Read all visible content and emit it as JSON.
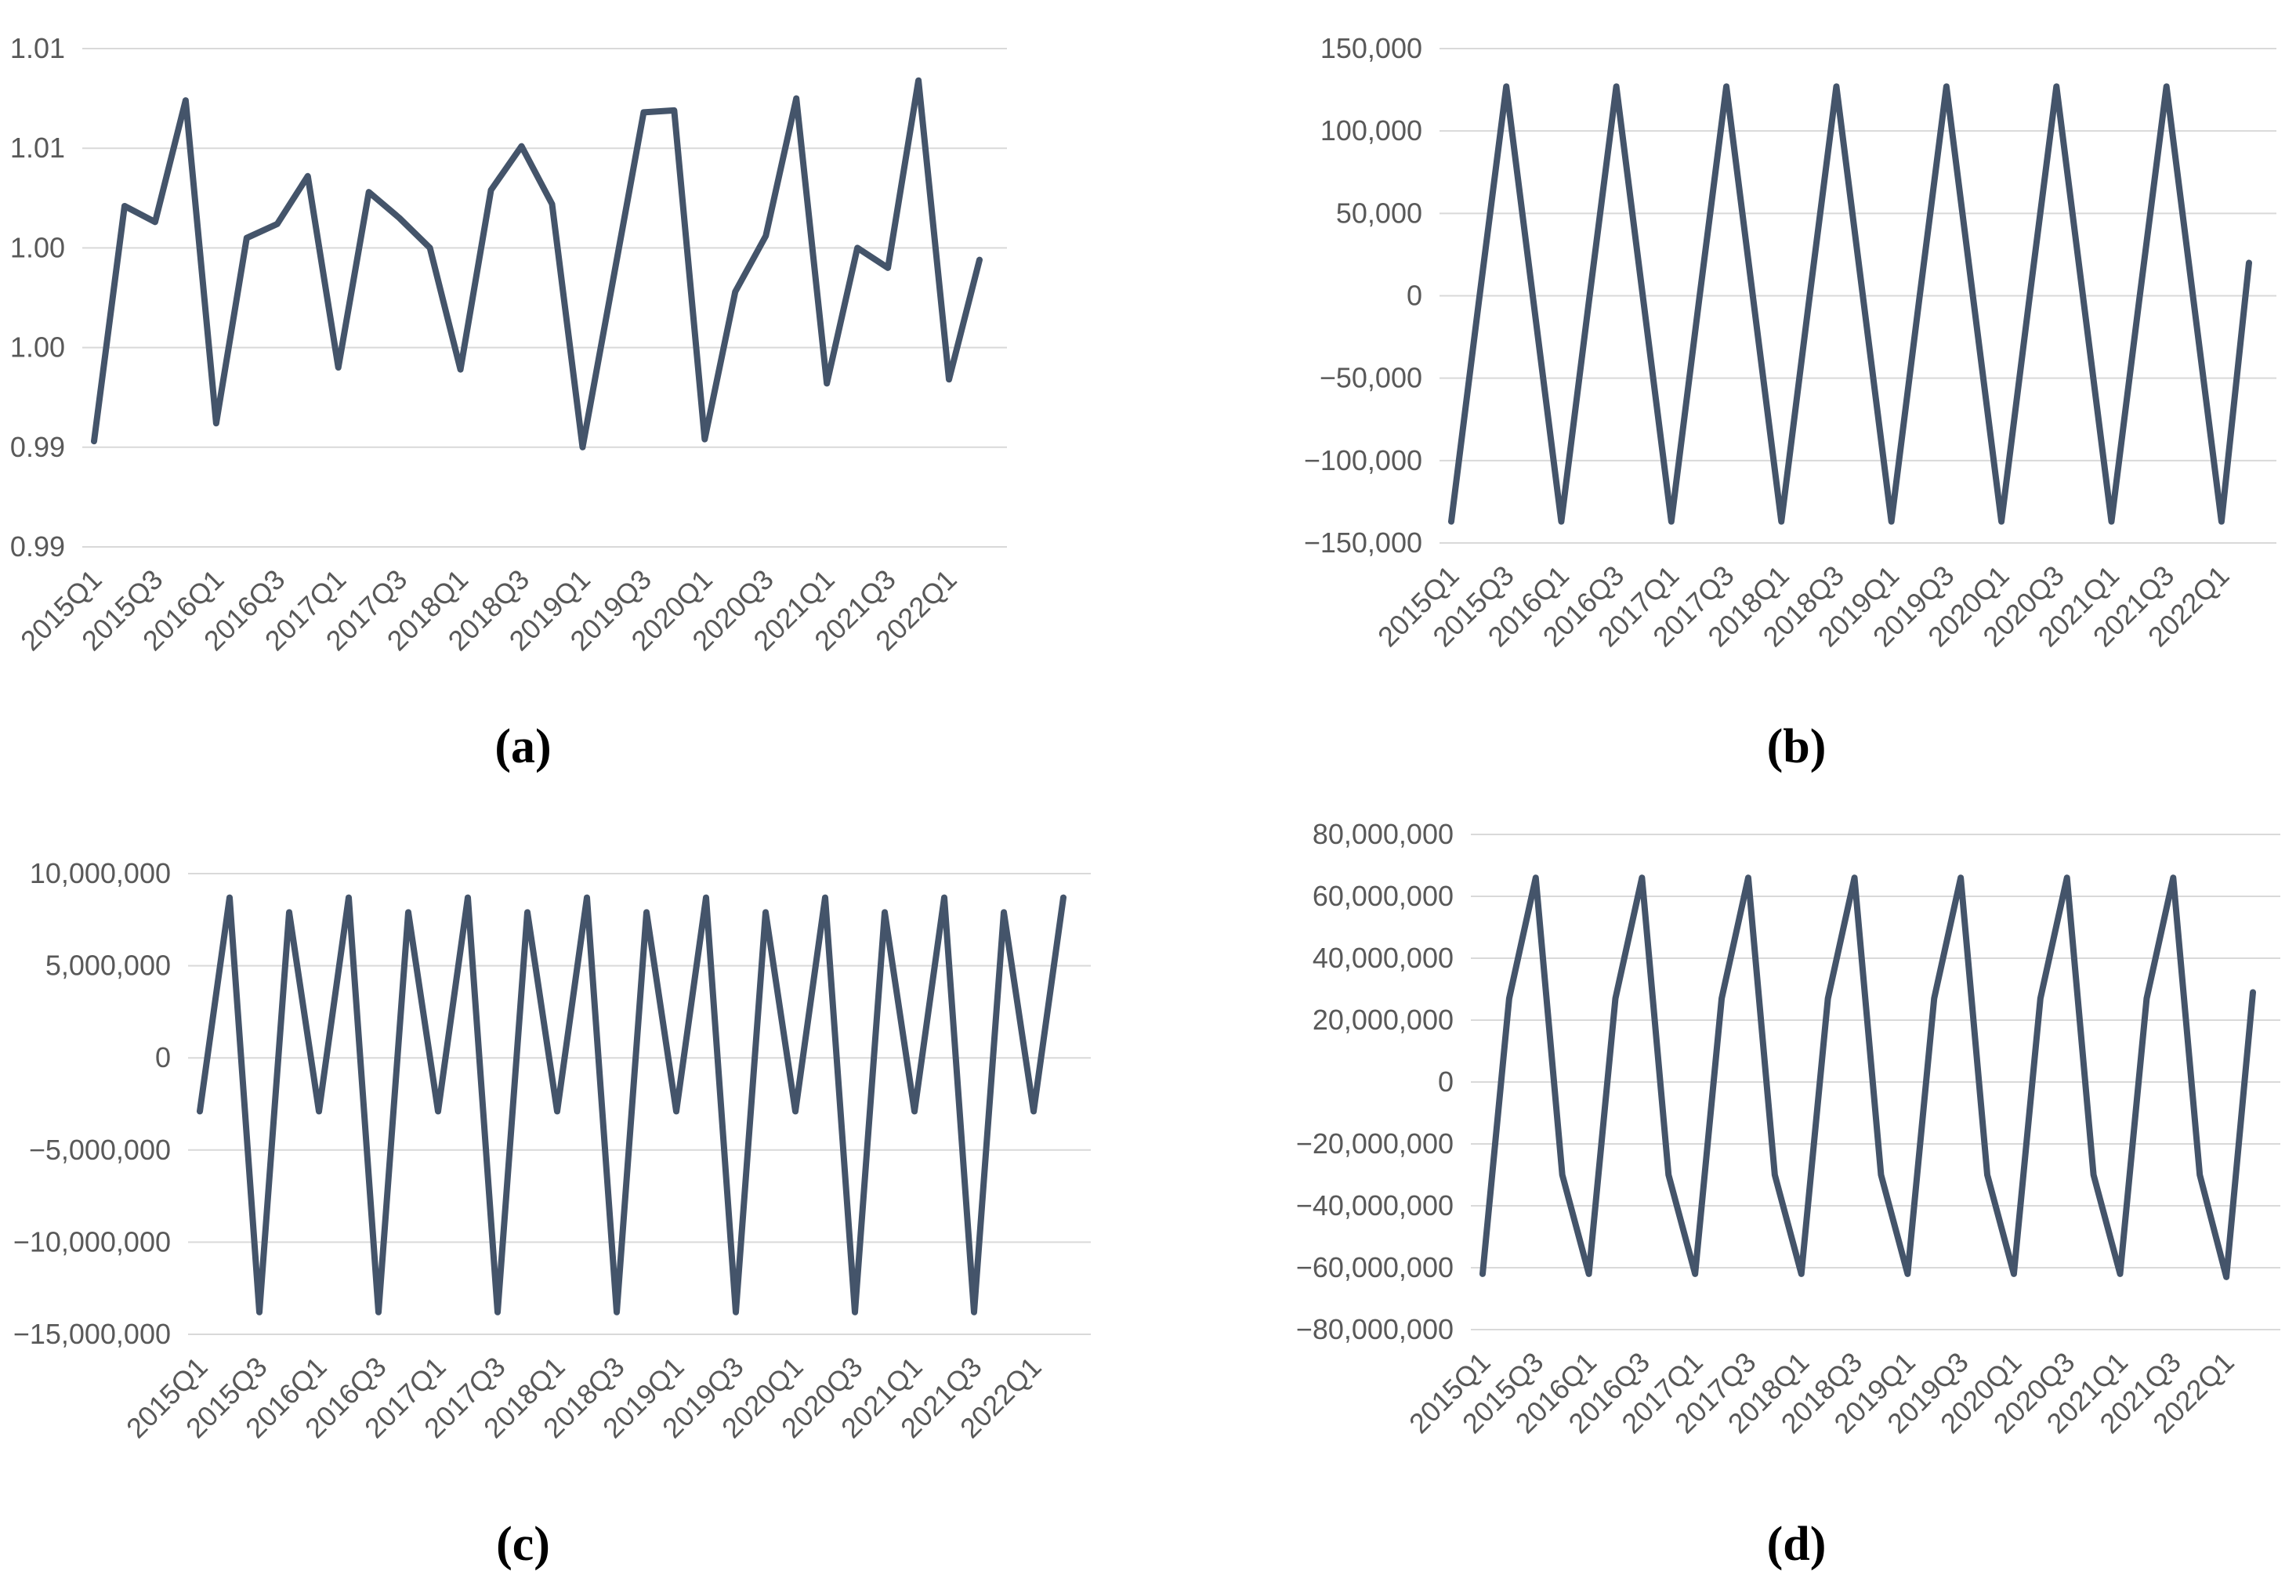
{
  "figure": {
    "background": "#FFFFFF",
    "line_color": "#44546A",
    "grid_color": "#D9D9D9",
    "tick_label_color": "#595959",
    "caption_color": "#000000"
  },
  "chart_data": [
    {
      "id": "a",
      "type": "line",
      "caption": "(a)",
      "title": "",
      "xlabel": "",
      "ylabel": "",
      "legend": "none",
      "grid": true,
      "ylim": [
        0.985,
        1.01
      ],
      "y_ticks": [
        {
          "value": 1.01,
          "label": "1.01"
        },
        {
          "value": 1.005,
          "label": "1.01"
        },
        {
          "value": 1.0,
          "label": "1.00"
        },
        {
          "value": 0.995,
          "label": "1.00"
        },
        {
          "value": 0.99,
          "label": "0.99"
        },
        {
          "value": 0.985,
          "label": "0.99"
        }
      ],
      "x_tick_labels": [
        "2015Q1",
        "2015Q3",
        "2016Q1",
        "2016Q3",
        "2017Q1",
        "2017Q3",
        "2018Q1",
        "2018Q3",
        "2019Q1",
        "2019Q3",
        "2020Q1",
        "2020Q3",
        "2021Q1",
        "2021Q3",
        "2022Q1"
      ],
      "categories": [
        "2015Q1",
        "2015Q2",
        "2015Q3",
        "2015Q4",
        "2016Q1",
        "2016Q2",
        "2016Q3",
        "2016Q4",
        "2017Q1",
        "2017Q2",
        "2017Q3",
        "2017Q4",
        "2018Q1",
        "2018Q2",
        "2018Q3",
        "2018Q4",
        "2019Q1",
        "2019Q2",
        "2019Q3",
        "2019Q4",
        "2020Q1",
        "2020Q2",
        "2020Q3",
        "2020Q4",
        "2021Q1",
        "2021Q2",
        "2021Q3",
        "2021Q4",
        "2022Q1",
        "2022Q2"
      ],
      "values": [
        0.9903,
        1.0021,
        1.0013,
        1.0074,
        0.9912,
        1.0005,
        1.0012,
        1.0036,
        0.994,
        1.0028,
        1.0015,
        1.0,
        0.9939,
        1.0029,
        1.0051,
        1.0022,
        0.99,
        0.9984,
        1.0068,
        1.0069,
        0.9904,
        0.9978,
        1.0006,
        1.0075,
        0.9932,
        1.0,
        0.999,
        1.0084,
        0.9934,
        0.9994
      ]
    },
    {
      "id": "b",
      "type": "line",
      "caption": "(b)",
      "title": "",
      "xlabel": "",
      "ylabel": "",
      "legend": "none",
      "grid": true,
      "ylim": [
        -150000,
        150000
      ],
      "y_ticks": [
        {
          "value": 150000,
          "label": "150,000"
        },
        {
          "value": 100000,
          "label": "100,000"
        },
        {
          "value": 50000,
          "label": "50,000"
        },
        {
          "value": 0,
          "label": "0"
        },
        {
          "value": -50000,
          "label": "−50,000"
        },
        {
          "value": -100000,
          "label": "−100,000"
        },
        {
          "value": -150000,
          "label": "−150,000"
        }
      ],
      "x_tick_labels": [
        "2015Q1",
        "2015Q3",
        "2016Q1",
        "2016Q3",
        "2017Q1",
        "2017Q3",
        "2018Q1",
        "2018Q3",
        "2019Q1",
        "2019Q3",
        "2020Q1",
        "2020Q3",
        "2021Q1",
        "2021Q3",
        "2022Q1"
      ],
      "categories": [
        "2015Q1",
        "2015Q2",
        "2015Q3",
        "2015Q4",
        "2016Q1",
        "2016Q2",
        "2016Q3",
        "2016Q4",
        "2017Q1",
        "2017Q2",
        "2017Q3",
        "2017Q4",
        "2018Q1",
        "2018Q2",
        "2018Q3",
        "2018Q4",
        "2019Q1",
        "2019Q2",
        "2019Q3",
        "2019Q4",
        "2020Q1",
        "2020Q2",
        "2020Q3",
        "2020Q4",
        "2021Q1",
        "2021Q2",
        "2021Q3",
        "2021Q4",
        "2022Q1",
        "2022Q2"
      ],
      "values": [
        -137000,
        -4000,
        127000,
        -5000,
        -137000,
        -4000,
        127000,
        -5000,
        -137000,
        -4000,
        127000,
        -5000,
        -137000,
        -4000,
        127000,
        -5000,
        -137000,
        -4000,
        127000,
        -5000,
        -137000,
        -4000,
        127000,
        -5000,
        -137000,
        -4000,
        127000,
        -5000,
        -137000,
        20000
      ]
    },
    {
      "id": "c",
      "type": "line",
      "caption": "(c)",
      "title": "",
      "xlabel": "",
      "ylabel": "",
      "legend": "none",
      "grid": true,
      "ylim": [
        -15000000,
        10000000
      ],
      "y_ticks": [
        {
          "value": 10000000,
          "label": "10,000,000"
        },
        {
          "value": 5000000,
          "label": "5,000,000"
        },
        {
          "value": 0,
          "label": "0"
        },
        {
          "value": -5000000,
          "label": "−5,000,000"
        },
        {
          "value": -10000000,
          "label": "−10,000,000"
        },
        {
          "value": -15000000,
          "label": "−15,000,000"
        }
      ],
      "x_tick_labels": [
        "2015Q1",
        "2015Q3",
        "2016Q1",
        "2016Q3",
        "2017Q1",
        "2017Q3",
        "2018Q1",
        "2018Q3",
        "2019Q1",
        "2019Q3",
        "2020Q1",
        "2020Q3",
        "2021Q1",
        "2021Q3",
        "2022Q1"
      ],
      "categories": [
        "2015Q1",
        "2015Q2",
        "2015Q3",
        "2015Q4",
        "2016Q1",
        "2016Q2",
        "2016Q3",
        "2016Q4",
        "2017Q1",
        "2017Q2",
        "2017Q3",
        "2017Q4",
        "2018Q1",
        "2018Q2",
        "2018Q3",
        "2018Q4",
        "2019Q1",
        "2019Q2",
        "2019Q3",
        "2019Q4",
        "2020Q1",
        "2020Q2",
        "2020Q3",
        "2020Q4",
        "2021Q1",
        "2021Q2",
        "2021Q3",
        "2021Q4",
        "2022Q1",
        "2022Q2"
      ],
      "values": [
        -2900000,
        8700000,
        -13800000,
        7900000,
        -2900000,
        8700000,
        -13800000,
        7900000,
        -2900000,
        8700000,
        -13800000,
        7900000,
        -2900000,
        8700000,
        -13800000,
        7900000,
        -2900000,
        8700000,
        -13800000,
        7900000,
        -2900000,
        8700000,
        -13800000,
        7900000,
        -2900000,
        8700000,
        -13800000,
        7900000,
        -2900000,
        8700000
      ]
    },
    {
      "id": "d",
      "type": "line",
      "caption": "(d)",
      "title": "",
      "xlabel": "",
      "ylabel": "",
      "legend": "none",
      "grid": true,
      "ylim": [
        -80000000,
        80000000
      ],
      "y_ticks": [
        {
          "value": 80000000,
          "label": "80,000,000"
        },
        {
          "value": 60000000,
          "label": "60,000,000"
        },
        {
          "value": 40000000,
          "label": "40,000,000"
        },
        {
          "value": 20000000,
          "label": "20,000,000"
        },
        {
          "value": 0,
          "label": "0"
        },
        {
          "value": -20000000,
          "label": "−20,000,000"
        },
        {
          "value": -40000000,
          "label": "−40,000,000"
        },
        {
          "value": -60000000,
          "label": "−60,000,000"
        },
        {
          "value": -80000000,
          "label": "−80,000,000"
        }
      ],
      "x_tick_labels": [
        "2015Q1",
        "2015Q3",
        "2016Q1",
        "2016Q3",
        "2017Q1",
        "2017Q3",
        "2018Q1",
        "2018Q3",
        "2019Q1",
        "2019Q3",
        "2020Q1",
        "2020Q3",
        "2021Q1",
        "2021Q3",
        "2022Q1"
      ],
      "categories": [
        "2015Q1",
        "2015Q2",
        "2015Q3",
        "2015Q4",
        "2016Q1",
        "2016Q2",
        "2016Q3",
        "2016Q4",
        "2017Q1",
        "2017Q2",
        "2017Q3",
        "2017Q4",
        "2018Q1",
        "2018Q2",
        "2018Q3",
        "2018Q4",
        "2019Q1",
        "2019Q2",
        "2019Q3",
        "2019Q4",
        "2020Q1",
        "2020Q2",
        "2020Q3",
        "2020Q4",
        "2021Q1",
        "2021Q2",
        "2021Q3",
        "2021Q4",
        "2022Q1",
        "2022Q2"
      ],
      "values": [
        -62000000,
        27000000,
        66000000,
        -30000000,
        -62000000,
        27000000,
        66000000,
        -30000000,
        -62000000,
        27000000,
        66000000,
        -30000000,
        -62000000,
        27000000,
        66000000,
        -30000000,
        -62000000,
        27000000,
        66000000,
        -30000000,
        -62000000,
        27000000,
        66000000,
        -30000000,
        -62000000,
        27000000,
        66000000,
        -30000000,
        -63000000,
        29000000
      ]
    }
  ]
}
